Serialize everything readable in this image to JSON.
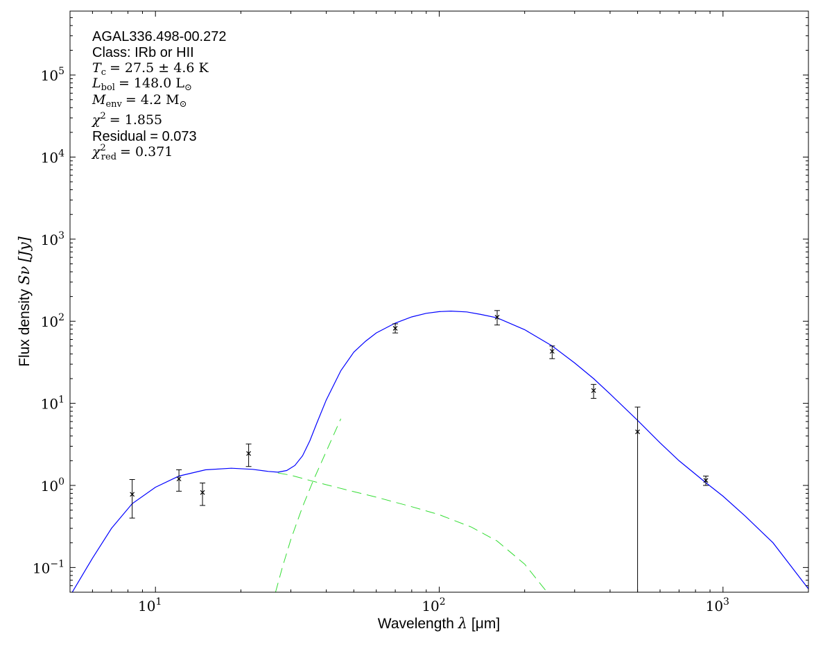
{
  "chart_data": {
    "type": "scatter",
    "xlabel": "Wavelength",
    "xlabel_symbol": "λ",
    "xlabel_unit": "[μm]",
    "ylabel": "Flux density",
    "ylabel_symbol": "Sν",
    "ylabel_unit": "[Jy]",
    "x_scale": "log",
    "y_scale": "log",
    "xlim": [
      5,
      2000
    ],
    "ylim": [
      0.05,
      600000
    ],
    "x_ticks": [
      {
        "value": 10,
        "base": "10",
        "exp": "1"
      },
      {
        "value": 100,
        "base": "10",
        "exp": "2"
      },
      {
        "value": 1000,
        "base": "10",
        "exp": "3"
      }
    ],
    "y_ticks": [
      {
        "value": 0.1,
        "base": "10",
        "exp": "−1"
      },
      {
        "value": 1,
        "base": "10",
        "exp": "0"
      },
      {
        "value": 10,
        "base": "10",
        "exp": "1"
      },
      {
        "value": 100,
        "base": "10",
        "exp": "2"
      },
      {
        "value": 1000,
        "base": "10",
        "exp": "3"
      },
      {
        "value": 10000,
        "base": "10",
        "exp": "4"
      },
      {
        "value": 100000,
        "base": "10",
        "exp": "5"
      }
    ],
    "grid": false,
    "annotations": {
      "source": "AGAL336.498-00.272",
      "class": "Class: IRb or HII",
      "tc_sym": "T",
      "tc_sub": "c",
      "tc_val": "= 27.5 ± 4.6 K",
      "lbol_sym": "L",
      "lbol_sub": "bol",
      "lbol_val": "= 148.0 L",
      "lbol_unit_sub": "⊙",
      "menv_sym": "M",
      "menv_sub": "env",
      "menv_val": "= 4.2 M",
      "menv_unit_sub": "⊙",
      "chi2_sym": "χ",
      "chi2_sup": "2",
      "chi2_val": "= 1.855",
      "residual": "Residual = 0.073",
      "chired_sym": "χ",
      "chired_sup": "2",
      "chired_sub": "red",
      "chired_val": "= 0.371"
    },
    "measurements": [
      {
        "x": 8.28,
        "y": 0.78,
        "err_low": 0.4,
        "err_high": 1.18
      },
      {
        "x": 12.1,
        "y": 1.2,
        "err_low": 0.85,
        "err_high": 1.55
      },
      {
        "x": 14.65,
        "y": 0.82,
        "err_low": 0.57,
        "err_high": 1.07
      },
      {
        "x": 21.3,
        "y": 2.45,
        "err_low": 1.7,
        "err_high": 3.2
      },
      {
        "x": 70,
        "y": 82,
        "err_low": 72,
        "err_high": 93
      },
      {
        "x": 160,
        "y": 112,
        "err_low": 90,
        "err_high": 135
      },
      {
        "x": 250,
        "y": 43,
        "err_low": 35,
        "err_high": 50
      },
      {
        "x": 350,
        "y": 14.3,
        "err_low": 11.5,
        "err_high": 17.0
      },
      {
        "x": 500,
        "y": 4.5,
        "err_low": 0.05,
        "err_high": 9.0
      },
      {
        "x": 870,
        "y": 1.15,
        "err_low": 1.0,
        "err_high": 1.3
      }
    ],
    "series": [
      {
        "style": "solid",
        "color": "#0000ff",
        "x": [
          5,
          6,
          7,
          8.28,
          10,
          12.1,
          15,
          18.5,
          22,
          25,
          27,
          29,
          31,
          33,
          35,
          37,
          40,
          45,
          50,
          55,
          60,
          70,
          80,
          90,
          100,
          110,
          125,
          140,
          160,
          200,
          250,
          300,
          350,
          400,
          500,
          600,
          700,
          870,
          1000,
          1200,
          1500,
          2000
        ],
        "y": [
          0.045,
          0.13,
          0.3,
          0.6,
          0.95,
          1.3,
          1.55,
          1.62,
          1.57,
          1.48,
          1.45,
          1.52,
          1.75,
          2.3,
          3.5,
          5.7,
          11,
          25,
          42,
          57,
          72,
          95,
          113,
          125,
          131,
          133,
          130,
          121,
          110,
          79,
          50,
          31,
          20,
          13,
          6.2,
          3.3,
          2.0,
          1.08,
          0.74,
          0.42,
          0.2,
          0.055
        ]
      },
      {
        "style": "dashed",
        "color": "#33dd33",
        "x": [
          27,
          30,
          35,
          40,
          50,
          60,
          80,
          100,
          130,
          160,
          200,
          240
        ],
        "y": [
          1.42,
          1.33,
          1.15,
          1.02,
          0.84,
          0.72,
          0.55,
          0.44,
          0.31,
          0.21,
          0.11,
          0.05
        ]
      },
      {
        "style": "dashed",
        "color": "#33dd33",
        "x": [
          26.5,
          28,
          30,
          33,
          36,
          40,
          45
        ],
        "y": [
          0.05,
          0.1,
          0.22,
          0.55,
          1.15,
          2.6,
          6.5
        ]
      }
    ]
  }
}
